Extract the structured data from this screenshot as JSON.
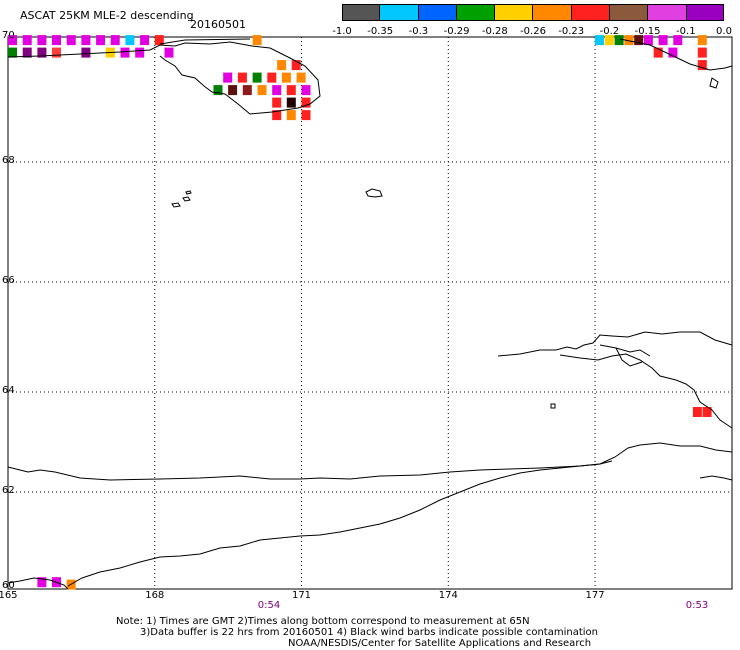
{
  "header": {
    "title": "ASCAT 25KM MLE-2 descending",
    "date": "20160501"
  },
  "colorbar": {
    "colors": [
      "#555555",
      "#00c8ff",
      "#0064ff",
      "#00a000",
      "#ffd000",
      "#ff8800",
      "#ff2020",
      "#8b5a3c",
      "#e040e0",
      "#9a00c0"
    ],
    "tick_labels": [
      "-1.0",
      "-0.35",
      "-0.3",
      "-0.29",
      "-0.28",
      "-0.26",
      "-0.23",
      "-0.2",
      "-0.15",
      "-0.1",
      "0.0"
    ]
  },
  "latitude_labels": [
    "70",
    "68",
    "66",
    "64",
    "62",
    "60"
  ],
  "longitude_labels": [
    "165",
    "168",
    "171",
    "174",
    "177"
  ],
  "time_labels": [
    "0:54",
    "0:53"
  ],
  "notes": {
    "line1": "Note: 1) Times are GMT 2)Times along bottom correspond to measurement at 65N",
    "line2": "3)Data buffer is 22 hrs from 20160501 4) Black wind barbs indicate possible contamination",
    "line3": "NOAA/NESDIS/Center for Satellite Applications and Research"
  },
  "data_cells": [
    {
      "lon": 165.0,
      "lat": 69.95,
      "color": "#e000e0"
    },
    {
      "lon": 165.3,
      "lat": 69.95,
      "color": "#e000e0"
    },
    {
      "lon": 165.6,
      "lat": 69.95,
      "color": "#e000e0"
    },
    {
      "lon": 165.9,
      "lat": 69.95,
      "color": "#e000e0"
    },
    {
      "lon": 166.2,
      "lat": 69.95,
      "color": "#e000e0"
    },
    {
      "lon": 166.5,
      "lat": 69.95,
      "color": "#e000e0"
    },
    {
      "lon": 166.8,
      "lat": 69.95,
      "color": "#e000e0"
    },
    {
      "lon": 167.1,
      "lat": 69.95,
      "color": "#e000e0"
    },
    {
      "lon": 167.4,
      "lat": 69.95,
      "color": "#00c8ff"
    },
    {
      "lon": 167.7,
      "lat": 69.95,
      "color": "#e000e0"
    },
    {
      "lon": 168.0,
      "lat": 69.95,
      "color": "#ff2020"
    },
    {
      "lon": 165.0,
      "lat": 69.75,
      "color": "#008000"
    },
    {
      "lon": 165.3,
      "lat": 69.75,
      "color": "#800080"
    },
    {
      "lon": 165.6,
      "lat": 69.75,
      "color": "#800080"
    },
    {
      "lon": 165.9,
      "lat": 69.75,
      "color": "#ff4040"
    },
    {
      "lon": 166.5,
      "lat": 69.75,
      "color": "#800080"
    },
    {
      "lon": 167.0,
      "lat": 69.75,
      "color": "#ffd000"
    },
    {
      "lon": 167.3,
      "lat": 69.75,
      "color": "#e000e0"
    },
    {
      "lon": 167.6,
      "lat": 69.75,
      "color": "#e000e0"
    },
    {
      "lon": 168.2,
      "lat": 69.75,
      "color": "#e000e0"
    },
    {
      "lon": 170.0,
      "lat": 69.95,
      "color": "#ff8800"
    },
    {
      "lon": 170.5,
      "lat": 69.55,
      "color": "#ff8800"
    },
    {
      "lon": 170.8,
      "lat": 69.55,
      "color": "#ff2020"
    },
    {
      "lon": 169.4,
      "lat": 69.35,
      "color": "#e000e0"
    },
    {
      "lon": 169.7,
      "lat": 69.35,
      "color": "#ff2020"
    },
    {
      "lon": 170.0,
      "lat": 69.35,
      "color": "#008000"
    },
    {
      "lon": 170.3,
      "lat": 69.35,
      "color": "#ff2020"
    },
    {
      "lon": 170.6,
      "lat": 69.35,
      "color": "#ff8800"
    },
    {
      "lon": 170.9,
      "lat": 69.35,
      "color": "#ff8800"
    },
    {
      "lon": 169.2,
      "lat": 69.15,
      "color": "#008000"
    },
    {
      "lon": 169.5,
      "lat": 69.15,
      "color": "#5c1010"
    },
    {
      "lon": 169.8,
      "lat": 69.15,
      "color": "#8b1a1a"
    },
    {
      "lon": 170.1,
      "lat": 69.15,
      "color": "#ff8800"
    },
    {
      "lon": 170.4,
      "lat": 69.15,
      "color": "#e000e0"
    },
    {
      "lon": 170.7,
      "lat": 69.15,
      "color": "#ff2020"
    },
    {
      "lon": 171.0,
      "lat": 69.15,
      "color": "#e000e0"
    },
    {
      "lon": 170.4,
      "lat": 68.95,
      "color": "#ff2020"
    },
    {
      "lon": 170.7,
      "lat": 68.95,
      "color": "#200000"
    },
    {
      "lon": 171.0,
      "lat": 68.95,
      "color": "#ff2020"
    },
    {
      "lon": 170.4,
      "lat": 68.75,
      "color": "#ff2020"
    },
    {
      "lon": 170.7,
      "lat": 68.75,
      "color": "#ff8800"
    },
    {
      "lon": 171.0,
      "lat": 68.75,
      "color": "#ff2020"
    },
    {
      "lon": 177.0,
      "lat": 69.95,
      "color": "#00c8ff"
    },
    {
      "lon": 177.2,
      "lat": 69.95,
      "color": "#ffd000"
    },
    {
      "lon": 177.4,
      "lat": 69.95,
      "color": "#008000"
    },
    {
      "lon": 177.6,
      "lat": 69.95,
      "color": "#ff8800"
    },
    {
      "lon": 177.8,
      "lat": 69.95,
      "color": "#5c1010"
    },
    {
      "lon": 178.0,
      "lat": 69.95,
      "color": "#e000e0"
    },
    {
      "lon": 178.3,
      "lat": 69.95,
      "color": "#e000e0"
    },
    {
      "lon": 178.6,
      "lat": 69.95,
      "color": "#e000e0"
    },
    {
      "lon": 178.2,
      "lat": 69.75,
      "color": "#ff2020"
    },
    {
      "lon": 178.5,
      "lat": 69.75,
      "color": "#e000e0"
    },
    {
      "lon": 179.1,
      "lat": 69.75,
      "color": "#ff2020"
    },
    {
      "lon": 179.1,
      "lat": 69.55,
      "color": "#ff2020"
    },
    {
      "lon": 179.1,
      "lat": 69.95,
      "color": "#ff8800"
    },
    {
      "lon": 179.0,
      "lat": 63.6,
      "color": "#ff2020"
    },
    {
      "lon": 179.2,
      "lat": 63.6,
      "color": "#ff2020"
    },
    {
      "lon": 165.6,
      "lat": 60.1,
      "color": "#e000e0"
    },
    {
      "lon": 165.9,
      "lat": 60.1,
      "color": "#e000e0"
    },
    {
      "lon": 166.2,
      "lat": 60.05,
      "color": "#ff8800"
    }
  ]
}
